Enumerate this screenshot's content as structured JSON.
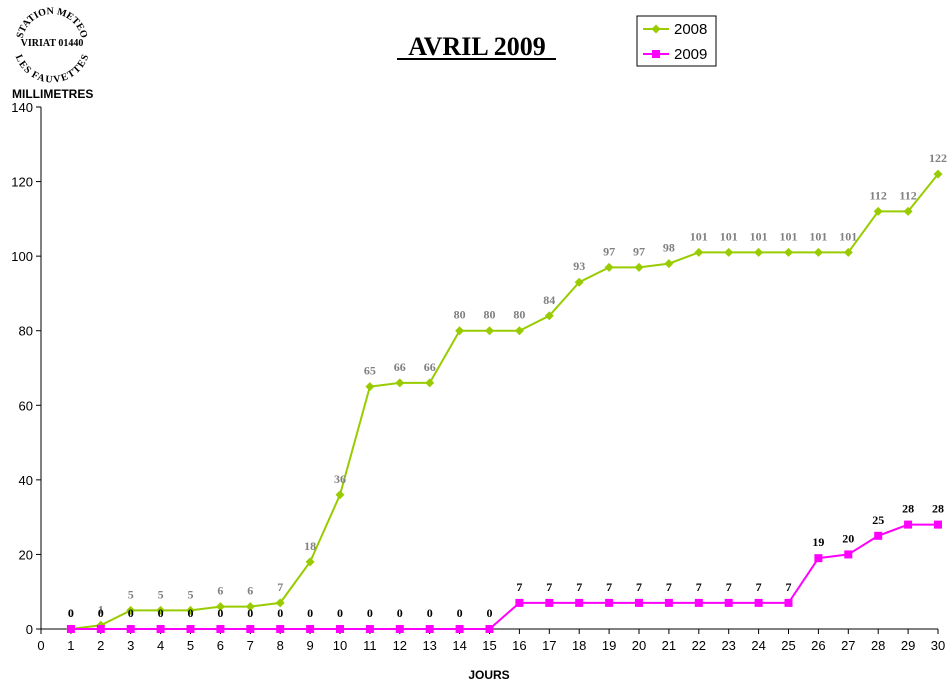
{
  "logo": {
    "top_text": "STATION METEO",
    "middle_text": "VIRIAT 01440",
    "bottom_text": "LES FAUVETTES"
  },
  "chart_data": {
    "type": "line",
    "title": "AVRIL 2009",
    "xlabel": "JOURS",
    "ylabel": "MILLIMETRES",
    "xlim": [
      0,
      30
    ],
    "ylim": [
      0,
      140
    ],
    "x_ticks": [
      0,
      1,
      2,
      3,
      4,
      5,
      6,
      7,
      8,
      9,
      10,
      11,
      12,
      13,
      14,
      15,
      16,
      17,
      18,
      19,
      20,
      21,
      22,
      23,
      24,
      25,
      26,
      27,
      28,
      29,
      30
    ],
    "y_ticks": [
      0,
      20,
      40,
      60,
      80,
      100,
      120,
      140
    ],
    "grid": false,
    "legend_position": "top-right",
    "x": [
      1,
      2,
      3,
      4,
      5,
      6,
      7,
      8,
      9,
      10,
      11,
      12,
      13,
      14,
      15,
      16,
      17,
      18,
      19,
      20,
      21,
      22,
      23,
      24,
      25,
      26,
      27,
      28,
      29,
      30
    ],
    "series": [
      {
        "name": "2008",
        "color": "#99CC00",
        "marker": "diamond",
        "label_color": "#808080",
        "values": [
          0,
          1,
          5,
          5,
          5,
          6,
          6,
          7,
          18,
          36,
          65,
          66,
          66,
          80,
          80,
          80,
          84,
          93,
          97,
          97,
          98,
          101,
          101,
          101,
          101,
          101,
          101,
          112,
          112,
          122
        ]
      },
      {
        "name": "2009",
        "color": "#FF00FF",
        "marker": "square",
        "label_color": "#000000",
        "values": [
          0,
          0,
          0,
          0,
          0,
          0,
          0,
          0,
          0,
          0,
          0,
          0,
          0,
          0,
          0,
          7,
          7,
          7,
          7,
          7,
          7,
          7,
          7,
          7,
          7,
          19,
          20,
          25,
          28,
          28
        ]
      }
    ]
  }
}
